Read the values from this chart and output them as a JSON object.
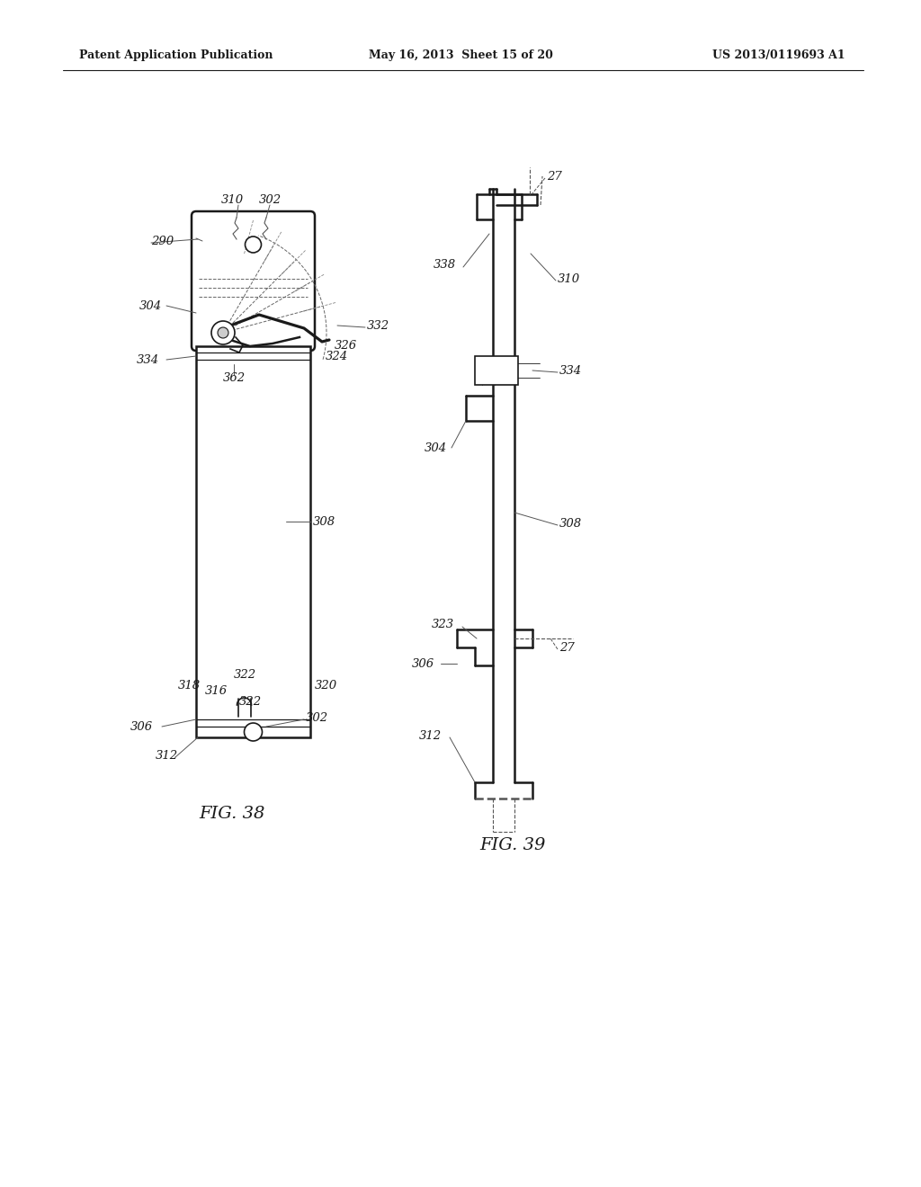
{
  "header_left": "Patent Application Publication",
  "header_mid": "May 16, 2013  Sheet 15 of 20",
  "header_right": "US 2013/0119693 A1",
  "fig38_label": "FIG. 38",
  "fig39_label": "FIG. 39",
  "bg_color": "#ffffff",
  "line_color": "#1a1a1a",
  "fig_width": 10.24,
  "fig_height": 13.2,
  "dpi": 100
}
